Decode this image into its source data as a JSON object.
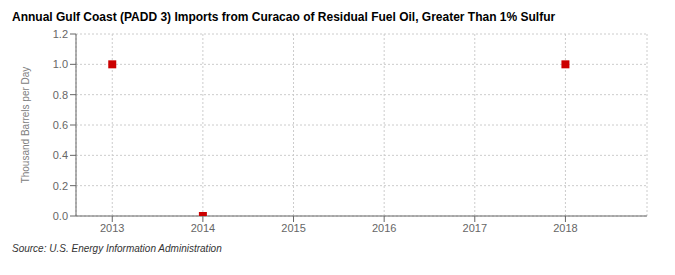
{
  "chart_data": {
    "type": "scatter",
    "title": "Annual Gulf Coast (PADD 3) Imports from Curacao of Residual Fuel Oil, Greater Than 1% Sulfur",
    "ylabel": "Thousand Barrels per Day",
    "source": "Source: U.S. Energy Information Administration",
    "x": [
      2013,
      2014,
      2018
    ],
    "values": [
      1.0,
      0.0,
      1.0
    ],
    "color": "#cc0000",
    "marker": "square",
    "xlim": [
      2012.6,
      2018.9
    ],
    "ylim": [
      0.0,
      1.2
    ],
    "xticks": [
      2013,
      2014,
      2015,
      2016,
      2017,
      2018
    ],
    "yticks": [
      {
        "value": 0.0,
        "label": "0.0"
      },
      0.2,
      0.4,
      0.6,
      0.8,
      {
        "value": 1.0,
        "label": "1.0"
      },
      1.2
    ],
    "grid": true
  }
}
